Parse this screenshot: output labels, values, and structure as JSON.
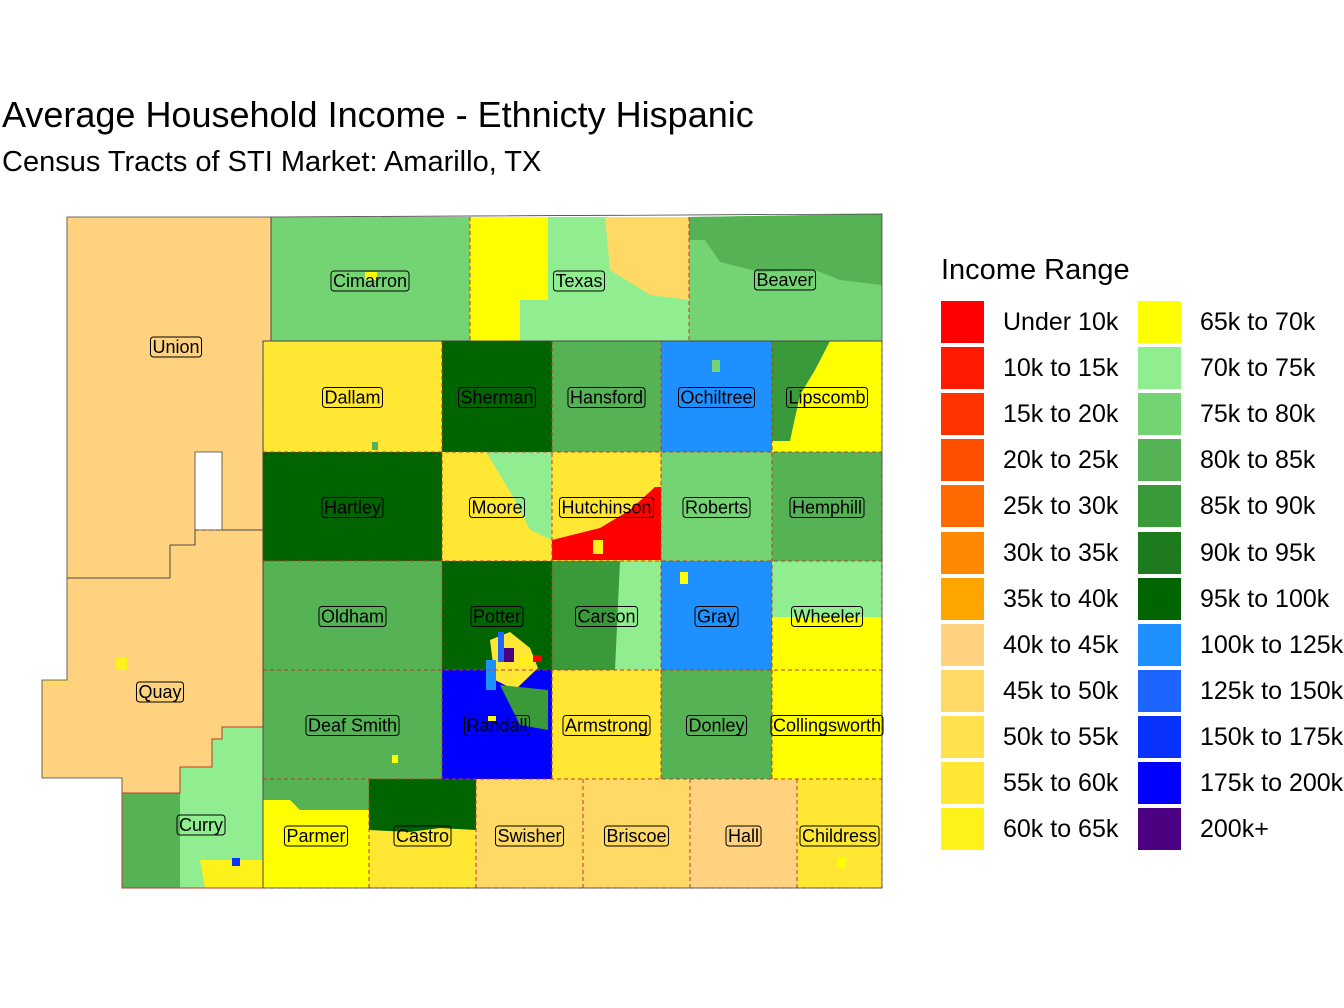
{
  "title": "Average Household Income - Ethnicty Hispanic",
  "subtitle": "Census Tracts of STI Market: Amarillo, TX",
  "legend": {
    "title": "Income Range",
    "items": [
      {
        "label": "Under 10k",
        "color": "#FF0000"
      },
      {
        "label": "10k to 15k",
        "color": "#FF1A00"
      },
      {
        "label": "15k to 20k",
        "color": "#FF3300"
      },
      {
        "label": "20k to 25k",
        "color": "#FF5000"
      },
      {
        "label": "25k to 30k",
        "color": "#FF6A00"
      },
      {
        "label": "30k to 35k",
        "color": "#FF8800"
      },
      {
        "label": "35k to 40k",
        "color": "#FFA500"
      },
      {
        "label": "40k to 45k",
        "color": "#FFD27F"
      },
      {
        "label": "45k to 50k",
        "color": "#FFD966"
      },
      {
        "label": "50k to 55k",
        "color": "#FFE14D"
      },
      {
        "label": "55k to 60k",
        "color": "#FFE733"
      },
      {
        "label": "60k to 65k",
        "color": "#FFF21A"
      },
      {
        "label": "65k to 70k",
        "color": "#FFFF00"
      },
      {
        "label": "70k to 75k",
        "color": "#90EE90"
      },
      {
        "label": "75k to 80k",
        "color": "#74D474"
      },
      {
        "label": "80k to 85k",
        "color": "#55B255"
      },
      {
        "label": "85k to 90k",
        "color": "#3A9A3A"
      },
      {
        "label": "90k to 95k",
        "color": "#1E7A1E"
      },
      {
        "label": "95k to 100k",
        "color": "#006400"
      },
      {
        "label": "100k to 125k",
        "color": "#1E90FF"
      },
      {
        "label": "125k to 150k",
        "color": "#1E64FF"
      },
      {
        "label": "150k to 175k",
        "color": "#0A32FF"
      },
      {
        "label": "175k to 200k",
        "color": "#0000FF"
      },
      {
        "label": "200k+",
        "color": "#4B0082"
      }
    ]
  },
  "counties": [
    {
      "name": "Union",
      "color": "#FFD27F"
    },
    {
      "name": "Quay",
      "color": "#FFD27F"
    },
    {
      "name": "Curry",
      "color": "#90EE90"
    },
    {
      "name": "Cimarron",
      "color": "#74D474"
    },
    {
      "name": "Texas",
      "color": "#90EE90"
    },
    {
      "name": "Beaver",
      "color": "#74D474"
    },
    {
      "name": "Dallam",
      "color": "#FFE733"
    },
    {
      "name": "Sherman",
      "color": "#006400"
    },
    {
      "name": "Hansford",
      "color": "#55B255"
    },
    {
      "name": "Ochiltree",
      "color": "#1E90FF"
    },
    {
      "name": "Lipscomb",
      "color": "#FFFF00"
    },
    {
      "name": "Hartley",
      "color": "#006400"
    },
    {
      "name": "Moore",
      "color": "#FFE733"
    },
    {
      "name": "Hutchinson",
      "color": "#FFE733"
    },
    {
      "name": "Roberts",
      "color": "#74D474"
    },
    {
      "name": "Hemphill",
      "color": "#55B255"
    },
    {
      "name": "Oldham",
      "color": "#55B255"
    },
    {
      "name": "Potter",
      "color": "#006400"
    },
    {
      "name": "Carson",
      "color": "#3A9A3A"
    },
    {
      "name": "Gray",
      "color": "#1E90FF"
    },
    {
      "name": "Wheeler",
      "color": "#90EE90"
    },
    {
      "name": "Deaf Smith",
      "color": "#55B255"
    },
    {
      "name": "Randall",
      "color": "#0000FF"
    },
    {
      "name": "Armstrong",
      "color": "#FFE733"
    },
    {
      "name": "Donley",
      "color": "#55B255"
    },
    {
      "name": "Collingsworth",
      "color": "#FFFF00"
    },
    {
      "name": "Parmer",
      "color": "#FFFF00"
    },
    {
      "name": "Castro",
      "color": "#FFE733"
    },
    {
      "name": "Swisher",
      "color": "#FFD966"
    },
    {
      "name": "Briscoe",
      "color": "#FFD966"
    },
    {
      "name": "Hall",
      "color": "#FFD27F"
    },
    {
      "name": "Childress",
      "color": "#FFE733"
    }
  ]
}
